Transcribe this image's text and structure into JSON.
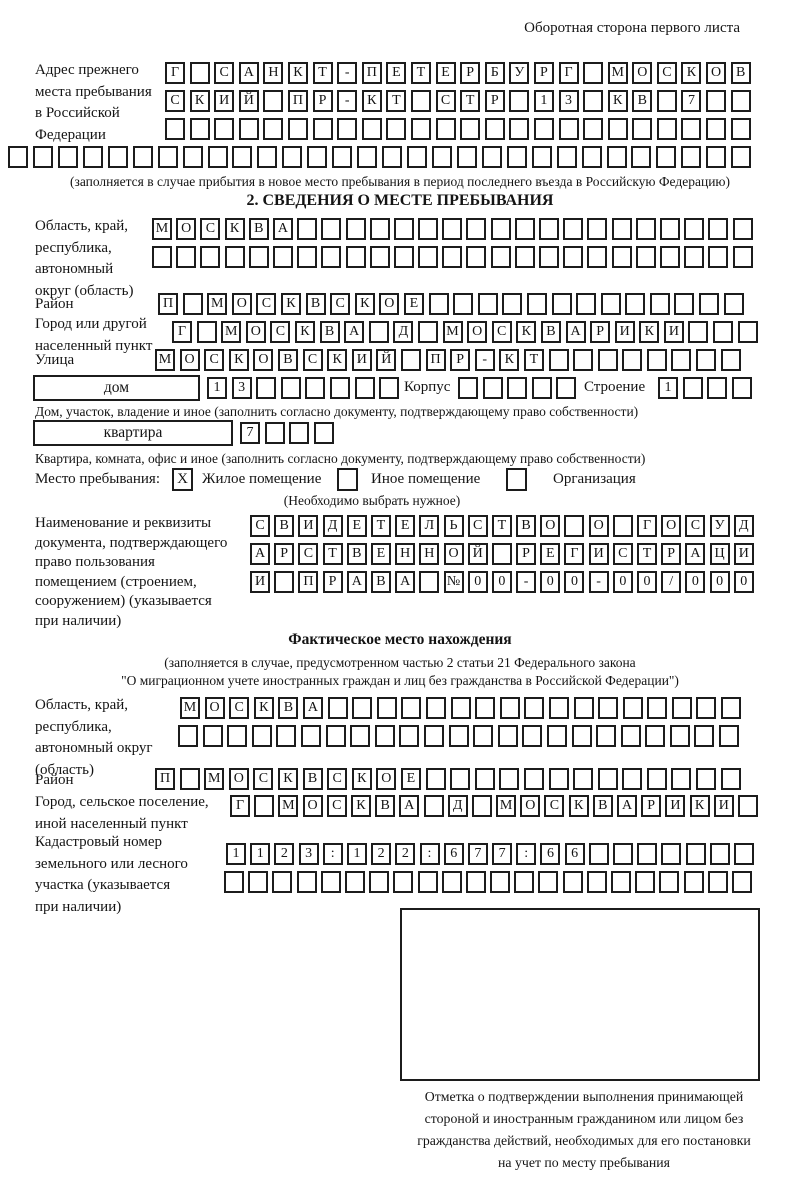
{
  "header": {
    "side_note": "Оборотная сторона первого листа"
  },
  "prev_address": {
    "label": "Адрес прежнего\nместа пребывания\nв Российской\nФедерации",
    "note": "(заполняется в случае прибытия в новое место пребывания в период последнего въезда в Российскую Федерацию)"
  },
  "section2": {
    "title": "2. СВЕДЕНИЯ О МЕСТЕ ПРЕБЫВАНИЯ",
    "oblast_label": "Область, край,\nреспублика,\nавтономный\nокруг (область)",
    "raion_label": "Район",
    "gorod_label": "Город или другой\nнаселенный пункт",
    "ulitsa_label": "Улица",
    "dom_box_label": "дом",
    "korpus_label": "Корпус",
    "stroenie_label": "Строение",
    "dom_note": "Дом, участок, владение и иное (заполнить согласно документу, подтверждающему право собственности)",
    "kvartira_box_label": "квартира",
    "kvartira_note": "Квартира, комната, офис и иное (заполнить согласно документу, подтверждающему право собственности)",
    "mesto_label": "Место пребывания:",
    "options": [
      {
        "label": "Жилое помещение",
        "mark": "X"
      },
      {
        "label": "Иное помещение",
        "mark": ""
      },
      {
        "label": "Организация",
        "mark": ""
      }
    ],
    "choose_note": "(Необходимо выбрать нужное)",
    "doc_label": "Наименование и реквизиты\nдокумента, подтверждающего\nправо пользования\nпомещением (строением,\nсооружением) (указывается\nпри наличии)"
  },
  "fact": {
    "title": "Фактическое место нахождения",
    "note1": "(заполняется в случае, предусмотренном частью 2 статьи 21 Федерального закона",
    "note2": "\"О миграционном учете иностранных граждан и лиц без гражданства в Российской Федерации\")",
    "oblast_label": "Область, край,\nреспублика,\nавтономный округ\n(область)",
    "raion_label": "Район",
    "gorod_label": "Город, сельское поселение,\nиной населенный пункт",
    "kadastr_label": "Кадастровый номер\nземельного или лесного\nучастка (указывается\nпри наличии)",
    "mark_note": "Отметка о подтверждении выполнения принимающей\nстороной и иностранным гражданином или лицом без\nгражданства действий, необходимых для его постановки\nна учет по месту пребывания"
  },
  "rows": {
    "prev_address_1": "Г САНКТ-ПЕТЕРБУРГ МОСКОВ",
    "prev_address_2": "СКИЙ ПР-КТ СТР 13 КВ 7",
    "prev_address_3": "",
    "prev_address_4": "",
    "oblast_1": "МОСКВА",
    "oblast_2": "",
    "raion": "П МОСКВСКОЕ",
    "gorod": "Г МОСКВА Д МОСКВАРИКИ",
    "ulitsa": "МОСКОВСКИЙ ПР-КТ",
    "dom": "13",
    "korpus": "",
    "stroenie": "1",
    "kvartira": "7",
    "doc_1": "СВИДЕТЕЛЬСТВО О ГОСУД",
    "doc_2": "АРСТВЕННОЙ РЕГИСТРАЦИ",
    "doc_3": "И ПРАВА №00-00-00/000",
    "fact_oblast_1": "МОСКВА",
    "fact_oblast_2": "",
    "fact_raion": "П МОСКВСКОЕ",
    "fact_gorod": "Г МОСКВА Д МОСКВАРИКИ",
    "kadastr_1": "1123:122:677:66",
    "kadastr_2": ""
  }
}
